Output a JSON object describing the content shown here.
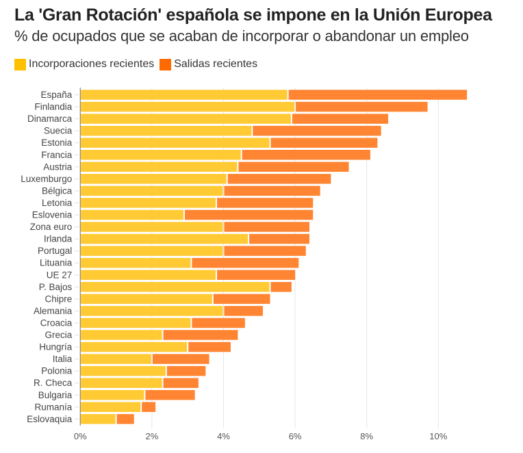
{
  "title": "La 'Gran Rotación' española se impone en la Unión Europea",
  "subtitle": "% de ocupados que se acaban de incorporar o abandonar un empleo",
  "legend": [
    {
      "label": "Incorporaciones recientes",
      "color": "#FFC000"
    },
    {
      "label": "Salidas recientes",
      "color": "#FF6A00"
    }
  ],
  "colors": {
    "incorporaciones_bar": "#FFCA33",
    "salidas_bar": "#FF8533",
    "axis": "#888888",
    "grid": "#e6e6e6"
  },
  "chart_data": {
    "type": "bar",
    "orientation": "horizontal",
    "stacked": true,
    "title": "La 'Gran Rotación' española se impone en la Unión Europea",
    "subtitle": "% de ocupados que se acaban de incorporar o abandonar un empleo",
    "xlabel": "",
    "ylabel": "",
    "xlim": [
      0,
      11
    ],
    "xticks": [
      0,
      2,
      4,
      6,
      8,
      10
    ],
    "xtick_labels": [
      "0%",
      "2%",
      "4%",
      "6%",
      "8%",
      "10%"
    ],
    "grid": true,
    "legend_position": "top-left",
    "categories": [
      "España",
      "Finlandia",
      "Dinamarca",
      "Suecia",
      "Estonia",
      "Francia",
      "Austria",
      "Luxemburgo",
      "Bélgica",
      "Letonia",
      "Eslovenia",
      "Zona euro",
      "Irlanda",
      "Portugal",
      "Lituania",
      "UE 27",
      "P. Bajos",
      "Chipre",
      "Alemania",
      "Croacia",
      "Grecia",
      "Hungría",
      "Italia",
      "Polonia",
      "R. Checa",
      "Bulgaria",
      "Rumanía",
      "Eslovaquia"
    ],
    "series": [
      {
        "name": "Incorporaciones recientes",
        "values": [
          5.8,
          6.0,
          5.9,
          4.8,
          5.3,
          4.5,
          4.4,
          4.1,
          4.0,
          3.8,
          2.9,
          4.0,
          4.7,
          4.0,
          3.1,
          3.8,
          5.3,
          3.7,
          4.0,
          3.1,
          2.3,
          3.0,
          2.0,
          2.4,
          2.3,
          1.8,
          1.7,
          1.0
        ]
      },
      {
        "name": "Salidas recientes",
        "values": [
          5.0,
          3.7,
          2.7,
          3.6,
          3.0,
          3.6,
          3.1,
          2.9,
          2.7,
          2.7,
          3.6,
          2.4,
          1.7,
          2.3,
          3.0,
          2.2,
          0.6,
          1.6,
          1.1,
          1.5,
          2.1,
          1.2,
          1.6,
          1.1,
          1.0,
          1.4,
          0.4,
          0.5
        ]
      }
    ]
  }
}
